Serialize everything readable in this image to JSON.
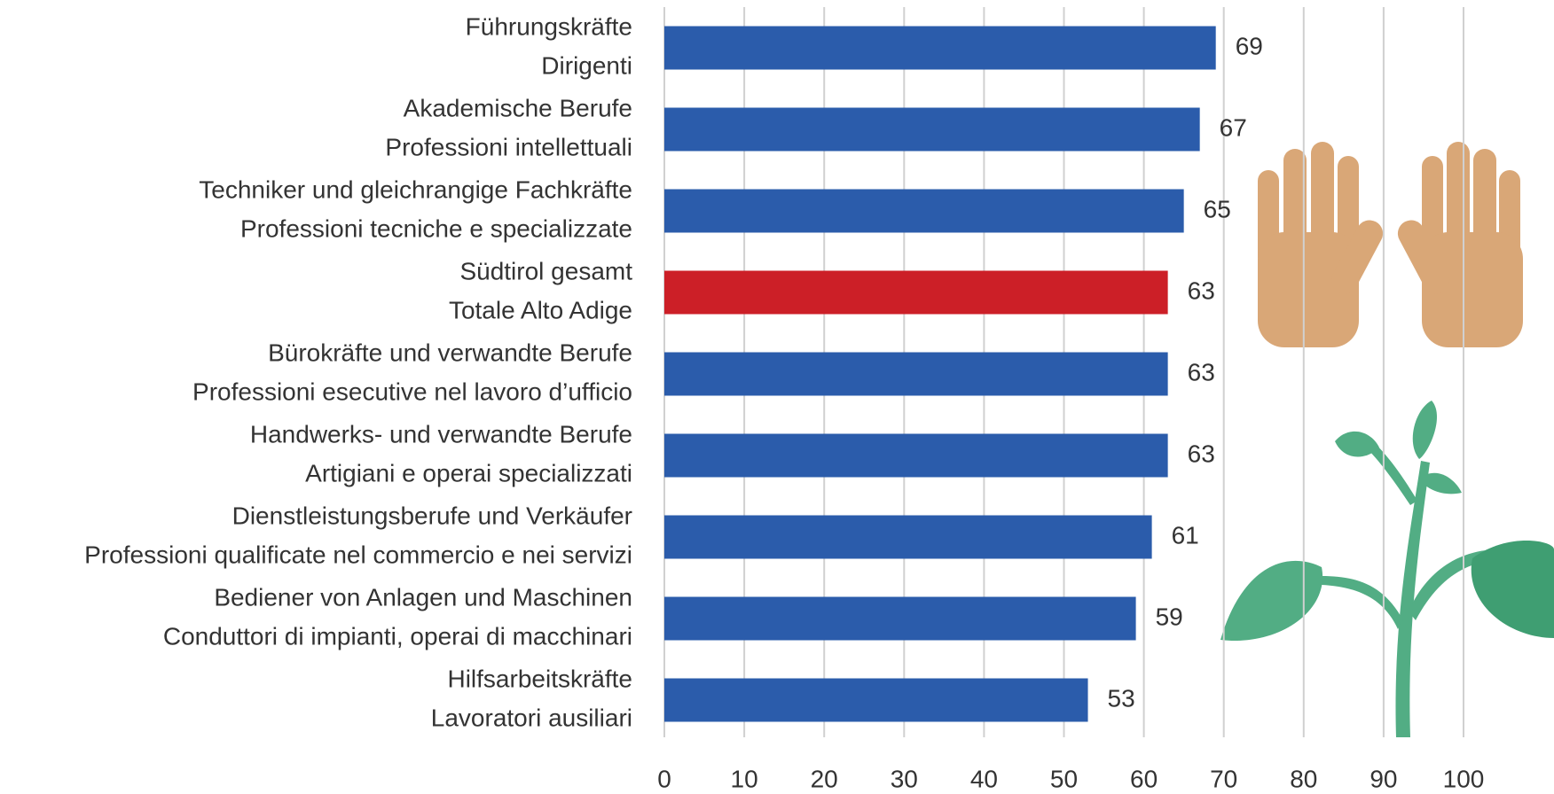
{
  "chart_data": {
    "type": "hbar",
    "categories": [
      [
        "Führungskräfte",
        "Dirigenti"
      ],
      [
        "Akademische Berufe",
        "Professioni intellettuali"
      ],
      [
        "Techniker und gleichrangige Fachkräfte",
        "Professioni tecniche e specializzate"
      ],
      [
        "Südtirol gesamt",
        "Totale Alto Adige"
      ],
      [
        "Bürokräfte und verwandte Berufe",
        "Professioni esecutive nel lavoro d’ufficio"
      ],
      [
        "Handwerks- und verwandte Berufe",
        "Artigiani e operai specializzati"
      ],
      [
        "Dienstleistungsberufe und Verkäufer",
        "Professioni qualificate nel commercio e nei servizi"
      ],
      [
        "Bediener von Anlagen und Maschinen",
        "Conduttori di impianti, operai di macchinari"
      ],
      [
        "Hilfsarbeitskräfte",
        "Lavoratori ausiliari"
      ]
    ],
    "values": [
      69,
      67,
      65,
      63,
      63,
      63,
      61,
      59,
      53
    ],
    "colors": [
      "#2b5cab",
      "#2b5cab",
      "#2b5cab",
      "#cc1f27",
      "#2b5cab",
      "#2b5cab",
      "#2b5cab",
      "#2b5cab",
      "#2b5cab"
    ],
    "xlim": [
      0,
      100
    ],
    "xticks": [
      0,
      10,
      20,
      30,
      40,
      50,
      60,
      70,
      80,
      90,
      100
    ],
    "grid": true
  }
}
